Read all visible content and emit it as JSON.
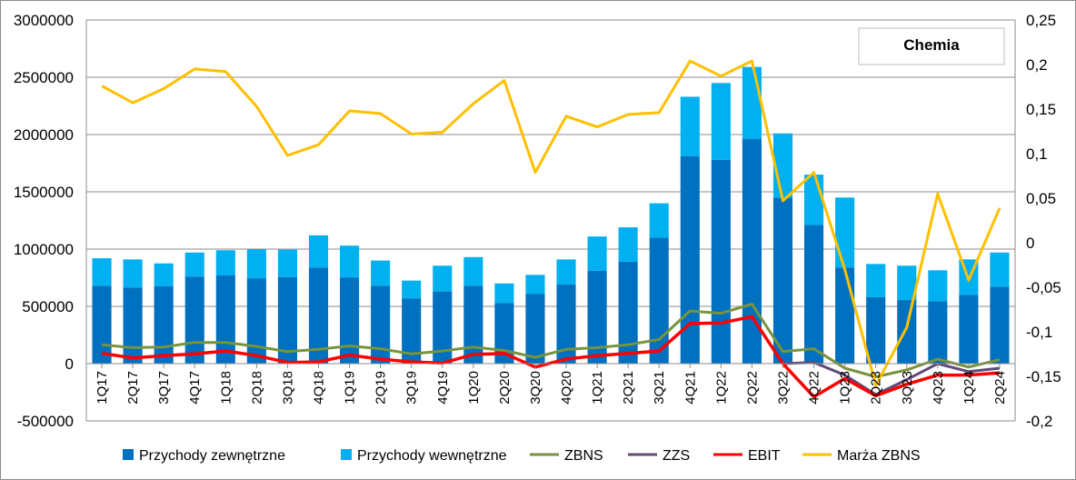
{
  "chart_data": {
    "type": "bar",
    "title": "Chemia",
    "categories": [
      "1Q17",
      "2Q17",
      "3Q17",
      "4Q17",
      "1Q18",
      "2Q18",
      "3Q18",
      "4Q18",
      "1Q19",
      "2Q19",
      "3Q19",
      "4Q19",
      "1Q20",
      "2Q20",
      "3Q20",
      "4Q20",
      "1Q21",
      "2Q21",
      "3Q21",
      "4Q21",
      "1Q22",
      "2Q22",
      "3Q22",
      "4Q22",
      "1Q23",
      "2Q23",
      "3Q23",
      "4Q23",
      "1Q24",
      "2Q24"
    ],
    "y_left": {
      "min": -500000,
      "max": 3000000,
      "step": 500000,
      "ticks": [
        "-500000",
        "0",
        "500000",
        "1000000",
        "1500000",
        "2000000",
        "2500000",
        "3000000"
      ]
    },
    "y_right": {
      "min": -0.2,
      "max": 0.25,
      "step": 0.05,
      "ticks": [
        "-0,2",
        "-0,15",
        "-0,1",
        "-0,05",
        "0",
        "0,05",
        "0,1",
        "0,15",
        "0,2",
        "0,25"
      ]
    },
    "grid": true,
    "legend_position": "bottom",
    "series": [
      {
        "name": "Przychody zewnętrzne",
        "type": "bar",
        "axis": "left",
        "color": "#0070c0",
        "values": [
          680000,
          665000,
          675000,
          760000,
          770000,
          745000,
          755000,
          840000,
          750000,
          680000,
          570000,
          630000,
          680000,
          530000,
          610000,
          690000,
          810000,
          890000,
          1100000,
          1810000,
          1780000,
          1960000,
          1450000,
          1210000,
          840000,
          580000,
          555000,
          545000,
          600000,
          670000
        ]
      },
      {
        "name": "Przychody wewnętrzne",
        "type": "bar",
        "axis": "left",
        "color": "#00b0f0",
        "values": [
          240000,
          245000,
          200000,
          210000,
          220000,
          255000,
          240000,
          280000,
          280000,
          220000,
          155000,
          225000,
          250000,
          170000,
          165000,
          220000,
          300000,
          300000,
          300000,
          520000,
          670000,
          630000,
          560000,
          440000,
          610000,
          290000,
          300000,
          270000,
          310000,
          300000
        ]
      },
      {
        "name": "ZBNS",
        "type": "line",
        "axis": "left",
        "color": "#77933c",
        "values": [
          165000,
          140000,
          145000,
          185000,
          185000,
          150000,
          105000,
          125000,
          155000,
          130000,
          85000,
          110000,
          145000,
          115000,
          55000,
          125000,
          140000,
          165000,
          210000,
          460000,
          440000,
          520000,
          105000,
          130000,
          -40000,
          -115000,
          -55000,
          40000,
          -30000,
          35000
        ]
      },
      {
        "name": "ZZS",
        "type": "line",
        "axis": "left",
        "color": "#604a7b",
        "values": [
          null,
          null,
          null,
          null,
          null,
          null,
          null,
          null,
          null,
          null,
          null,
          null,
          null,
          null,
          null,
          null,
          null,
          null,
          null,
          null,
          null,
          null,
          0,
          10000,
          -100000,
          -270000,
          -140000,
          0,
          -70000,
          -40000
        ]
      },
      {
        "name": "EBIT",
        "type": "line",
        "axis": "left",
        "color": "#ff0000",
        "values": [
          90000,
          50000,
          70000,
          85000,
          110000,
          70000,
          10000,
          15000,
          75000,
          40000,
          15000,
          5000,
          80000,
          90000,
          -30000,
          40000,
          70000,
          90000,
          110000,
          350000,
          355000,
          410000,
          0,
          -290000,
          -130000,
          -280000,
          -180000,
          -100000,
          -100000,
          -80000
        ]
      },
      {
        "name": "Marża ZBNS",
        "type": "line",
        "axis": "right",
        "color": "#ffc000",
        "values": [
          0.176,
          0.157,
          0.173,
          0.195,
          0.192,
          0.153,
          0.098,
          0.11,
          0.148,
          0.145,
          0.122,
          0.124,
          0.156,
          0.182,
          0.079,
          0.142,
          0.13,
          0.144,
          0.146,
          0.204,
          0.187,
          0.204,
          0.047,
          0.079,
          -0.03,
          -0.16,
          -0.095,
          0.055,
          -0.042,
          0.039
        ]
      }
    ]
  }
}
